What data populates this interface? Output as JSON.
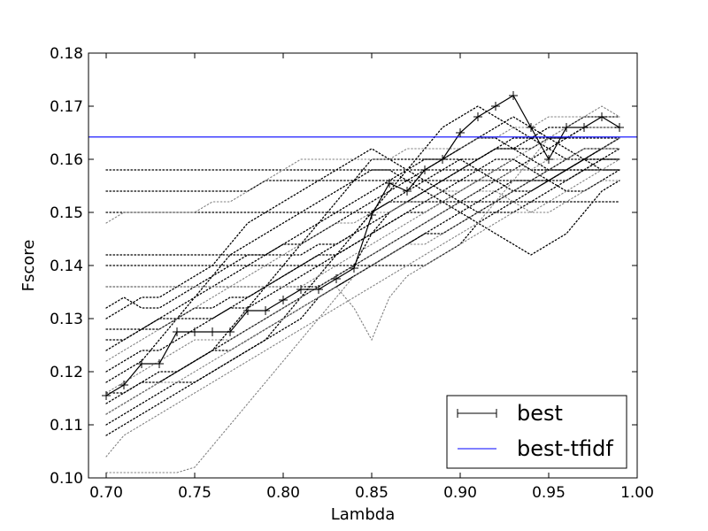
{
  "chart_data": {
    "type": "line",
    "title": "",
    "xlabel": "Lambda",
    "ylabel": "Fscore",
    "xlim": [
      0.69,
      1.0
    ],
    "ylim": [
      0.1,
      0.18
    ],
    "grid": false,
    "legend_position": "lower-right",
    "x_ticks": [
      "0.70",
      "0.75",
      "0.80",
      "0.85",
      "0.90",
      "0.95",
      "1.00"
    ],
    "y_ticks": [
      "0.10",
      "0.11",
      "0.12",
      "0.13",
      "0.14",
      "0.15",
      "0.16",
      "0.17",
      "0.18"
    ],
    "x": [
      0.7,
      0.71,
      0.72,
      0.73,
      0.74,
      0.75,
      0.76,
      0.77,
      0.78,
      0.79,
      0.8,
      0.81,
      0.82,
      0.83,
      0.84,
      0.85,
      0.86,
      0.87,
      0.88,
      0.89,
      0.9,
      0.91,
      0.92,
      0.93,
      0.94,
      0.95,
      0.96,
      0.97,
      0.98,
      0.99
    ],
    "series": [
      {
        "name": "best",
        "color": "#000000",
        "marker": "plus",
        "values": [
          0.1155,
          0.1175,
          0.1215,
          0.1215,
          0.1275,
          0.1275,
          0.1275,
          0.1275,
          0.1315,
          0.1315,
          0.1335,
          0.1355,
          0.1355,
          0.1375,
          0.1395,
          0.1495,
          0.1555,
          0.154,
          0.158,
          0.16,
          0.165,
          0.168,
          0.17,
          0.172,
          0.166,
          0.16,
          0.166,
          0.166,
          0.168,
          0.166
        ]
      },
      {
        "name": "best-tfidf",
        "color": "#0000ff",
        "constant": 0.1642
      }
    ],
    "background_series": [
      {
        "color": "#000000",
        "values": [
          0.158,
          0.158,
          0.158,
          0.158,
          0.158,
          0.158,
          0.158,
          0.158,
          0.158,
          0.158,
          0.158,
          0.158,
          0.158,
          0.158,
          0.158,
          0.158,
          0.158,
          0.158,
          0.158,
          0.158,
          0.158,
          0.158,
          0.158,
          0.158,
          0.158,
          0.158,
          0.158,
          0.158,
          0.158,
          0.158
        ]
      },
      {
        "color": "#000000",
        "values": [
          0.154,
          0.154,
          0.154,
          0.154,
          0.154,
          0.154,
          0.154,
          0.154,
          0.154,
          0.156,
          0.156,
          0.156,
          0.156,
          0.156,
          0.156,
          0.156,
          0.156,
          0.156,
          0.156,
          0.156,
          0.156,
          0.156,
          0.156,
          0.156,
          0.156,
          0.156,
          0.156,
          0.158,
          0.158,
          0.158
        ]
      },
      {
        "color": "#000000",
        "values": [
          0.15,
          0.15,
          0.15,
          0.15,
          0.15,
          0.15,
          0.15,
          0.15,
          0.15,
          0.15,
          0.15,
          0.15,
          0.15,
          0.15,
          0.15,
          0.15,
          0.152,
          0.152,
          0.152,
          0.152,
          0.152,
          0.152,
          0.152,
          0.152,
          0.152,
          0.152,
          0.152,
          0.152,
          0.152,
          0.152
        ]
      },
      {
        "color": "#000000",
        "values": [
          0.142,
          0.142,
          0.142,
          0.142,
          0.142,
          0.142,
          0.142,
          0.142,
          0.142,
          0.142,
          0.142,
          0.142,
          0.144,
          0.144,
          0.146,
          0.15,
          0.152,
          0.154,
          0.156,
          0.158,
          0.16,
          0.16,
          0.162,
          0.162,
          0.162,
          0.164,
          0.164,
          0.164,
          0.164,
          0.164
        ]
      },
      {
        "color": "#000000",
        "values": [
          0.14,
          0.14,
          0.14,
          0.14,
          0.14,
          0.14,
          0.14,
          0.14,
          0.14,
          0.14,
          0.14,
          0.14,
          0.14,
          0.14,
          0.14,
          0.14,
          0.14,
          0.14,
          0.14,
          0.142,
          0.144,
          0.148,
          0.15,
          0.152,
          0.154,
          0.156,
          0.158,
          0.16,
          0.16,
          0.16
        ]
      },
      {
        "color": "#000000",
        "values": [
          0.136,
          0.136,
          0.136,
          0.136,
          0.136,
          0.136,
          0.136,
          0.136,
          0.136,
          0.136,
          0.136,
          0.136,
          0.136,
          0.138,
          0.14,
          0.146,
          0.15,
          0.152,
          0.154,
          0.156,
          0.158,
          0.16,
          0.162,
          0.162,
          0.164,
          0.164,
          0.164,
          0.166,
          0.166,
          0.166
        ]
      },
      {
        "color": "#000000",
        "values": [
          0.132,
          0.134,
          0.132,
          0.132,
          0.134,
          0.136,
          0.138,
          0.14,
          0.142,
          0.142,
          0.144,
          0.144,
          0.146,
          0.148,
          0.15,
          0.152,
          0.154,
          0.156,
          0.158,
          0.16,
          0.162,
          0.164,
          0.164,
          0.162,
          0.16,
          0.158,
          0.158,
          0.16,
          0.162,
          0.164
        ]
      },
      {
        "color": "#000000",
        "values": [
          0.128,
          0.128,
          0.128,
          0.13,
          0.13,
          0.132,
          0.132,
          0.134,
          0.134,
          0.136,
          0.138,
          0.14,
          0.142,
          0.142,
          0.144,
          0.146,
          0.148,
          0.15,
          0.152,
          0.154,
          0.156,
          0.158,
          0.16,
          0.16,
          0.158,
          0.158,
          0.158,
          0.16,
          0.162,
          0.162
        ]
      },
      {
        "color": "#000000",
        "values": [
          0.124,
          0.126,
          0.128,
          0.13,
          0.132,
          0.134,
          0.136,
          0.138,
          0.14,
          0.142,
          0.144,
          0.146,
          0.148,
          0.15,
          0.152,
          0.154,
          0.156,
          0.158,
          0.16,
          0.16,
          0.16,
          0.158,
          0.156,
          0.154,
          0.154,
          0.156,
          0.158,
          0.16,
          0.162,
          0.164
        ]
      },
      {
        "color": "#000000",
        "values": [
          0.12,
          0.122,
          0.124,
          0.124,
          0.126,
          0.128,
          0.13,
          0.132,
          0.134,
          0.136,
          0.138,
          0.14,
          0.142,
          0.144,
          0.146,
          0.148,
          0.15,
          0.152,
          0.154,
          0.156,
          0.158,
          0.16,
          0.162,
          0.164,
          0.164,
          0.166,
          0.166,
          0.168,
          0.168,
          0.168
        ]
      },
      {
        "color": "#000000",
        "values": [
          0.112,
          0.114,
          0.116,
          0.118,
          0.12,
          0.122,
          0.124,
          0.126,
          0.128,
          0.13,
          0.132,
          0.134,
          0.136,
          0.138,
          0.14,
          0.142,
          0.144,
          0.146,
          0.148,
          0.15,
          0.152,
          0.154,
          0.156,
          0.158,
          0.16,
          0.162,
          0.164,
          0.166,
          0.166,
          0.166
        ]
      },
      {
        "color": "#000000",
        "values": [
          0.108,
          0.11,
          0.112,
          0.114,
          0.116,
          0.118,
          0.12,
          0.122,
          0.124,
          0.126,
          0.128,
          0.13,
          0.134,
          0.136,
          0.138,
          0.14,
          0.142,
          0.144,
          0.146,
          0.148,
          0.15,
          0.152,
          0.154,
          0.156,
          0.156,
          0.156,
          0.158,
          0.158,
          0.16,
          0.16
        ]
      },
      {
        "color": "#000000",
        "values": [
          0.116,
          0.116,
          0.118,
          0.118,
          0.12,
          0.122,
          0.124,
          0.128,
          0.132,
          0.136,
          0.14,
          0.144,
          0.148,
          0.152,
          0.156,
          0.16,
          0.16,
          0.16,
          0.16,
          0.16,
          0.162,
          0.164,
          0.166,
          0.168,
          0.166,
          0.164,
          0.162,
          0.16,
          0.16,
          0.16
        ]
      },
      {
        "color": "#000000",
        "values": [
          0.126,
          0.126,
          0.128,
          0.128,
          0.13,
          0.13,
          0.13,
          0.132,
          0.132,
          0.134,
          0.136,
          0.138,
          0.14,
          0.142,
          0.144,
          0.146,
          0.148,
          0.15,
          0.15,
          0.152,
          0.154,
          0.156,
          0.158,
          0.16,
          0.158,
          0.156,
          0.154,
          0.154,
          0.156,
          0.158
        ]
      },
      {
        "color": "#000000",
        "values": [
          0.114,
          0.116,
          0.118,
          0.12,
          0.12,
          0.122,
          0.124,
          0.124,
          0.126,
          0.128,
          0.13,
          0.132,
          0.134,
          0.136,
          0.138,
          0.14,
          0.142,
          0.144,
          0.146,
          0.146,
          0.148,
          0.15,
          0.152,
          0.154,
          0.156,
          0.158,
          0.16,
          0.162,
          0.162,
          0.164
        ]
      },
      {
        "color": "#000000",
        "values": [
          0.11,
          0.112,
          0.114,
          0.116,
          0.118,
          0.118,
          0.12,
          0.122,
          0.124,
          0.126,
          0.13,
          0.134,
          0.138,
          0.142,
          0.146,
          0.15,
          0.154,
          0.158,
          0.162,
          0.166,
          0.168,
          0.17,
          0.168,
          0.166,
          0.164,
          0.162,
          0.16,
          0.16,
          0.158,
          0.158
        ]
      },
      {
        "color": "#000000",
        "values": [
          0.13,
          0.132,
          0.134,
          0.134,
          0.136,
          0.138,
          0.14,
          0.144,
          0.148,
          0.15,
          0.152,
          0.154,
          0.156,
          0.158,
          0.16,
          0.162,
          0.16,
          0.158,
          0.156,
          0.154,
          0.152,
          0.15,
          0.15,
          0.15,
          0.152,
          0.154,
          0.156,
          0.158,
          0.16,
          0.162
        ]
      },
      {
        "color": "#000000",
        "values": [
          0.118,
          0.12,
          0.122,
          0.126,
          0.13,
          0.134,
          0.138,
          0.142,
          0.144,
          0.146,
          0.148,
          0.15,
          0.152,
          0.154,
          0.156,
          0.158,
          0.158,
          0.156,
          0.154,
          0.152,
          0.15,
          0.148,
          0.146,
          0.144,
          0.142,
          0.144,
          0.146,
          0.15,
          0.154,
          0.156
        ]
      },
      {
        "color": "#808080",
        "values": [
          0.101,
          0.101,
          0.101,
          0.101,
          0.101,
          0.102,
          0.106,
          0.11,
          0.114,
          0.118,
          0.122,
          0.126,
          0.13,
          0.134,
          0.138,
          0.14,
          0.142,
          0.144,
          0.144,
          0.146,
          0.148,
          0.15,
          0.152,
          0.154,
          0.156,
          0.158,
          0.16,
          0.162,
          0.162,
          0.162
        ]
      },
      {
        "color": "#808080",
        "values": [
          0.104,
          0.108,
          0.11,
          0.112,
          0.114,
          0.116,
          0.118,
          0.12,
          0.122,
          0.124,
          0.126,
          0.128,
          0.13,
          0.132,
          0.134,
          0.136,
          0.138,
          0.14,
          0.142,
          0.144,
          0.146,
          0.148,
          0.152,
          0.156,
          0.16,
          0.164,
          0.166,
          0.168,
          0.17,
          0.168
        ]
      },
      {
        "color": "#808080",
        "values": [
          0.112,
          0.114,
          0.116,
          0.118,
          0.118,
          0.12,
          0.122,
          0.124,
          0.126,
          0.128,
          0.13,
          0.132,
          0.134,
          0.136,
          0.132,
          0.126,
          0.134,
          0.138,
          0.14,
          0.142,
          0.144,
          0.146,
          0.148,
          0.15,
          0.15,
          0.152,
          0.154,
          0.156,
          0.158,
          0.16
        ]
      },
      {
        "color": "#808080",
        "values": [
          0.136,
          0.136,
          0.136,
          0.136,
          0.136,
          0.136,
          0.136,
          0.136,
          0.136,
          0.136,
          0.136,
          0.136,
          0.138,
          0.14,
          0.142,
          0.144,
          0.146,
          0.148,
          0.15,
          0.152,
          0.154,
          0.156,
          0.158,
          0.16,
          0.162,
          0.164,
          0.166,
          0.166,
          0.166,
          0.166
        ]
      },
      {
        "color": "#808080",
        "values": [
          0.148,
          0.15,
          0.15,
          0.15,
          0.15,
          0.15,
          0.152,
          0.152,
          0.154,
          0.156,
          0.158,
          0.16,
          0.16,
          0.16,
          0.16,
          0.16,
          0.16,
          0.162,
          0.162,
          0.162,
          0.162,
          0.164,
          0.164,
          0.166,
          0.166,
          0.168,
          0.168,
          0.168,
          0.168,
          0.168
        ]
      },
      {
        "color": "#808080",
        "values": [
          0.122,
          0.124,
          0.126,
          0.128,
          0.13,
          0.132,
          0.134,
          0.136,
          0.138,
          0.14,
          0.142,
          0.144,
          0.146,
          0.148,
          0.148,
          0.15,
          0.15,
          0.152,
          0.152,
          0.154,
          0.154,
          0.156,
          0.156,
          0.158,
          0.158,
          0.16,
          0.16,
          0.162,
          0.162,
          0.164
        ]
      },
      {
        "color": "#808080",
        "values": [
          0.116,
          0.118,
          0.12,
          0.122,
          0.124,
          0.126,
          0.126,
          0.126,
          0.128,
          0.13,
          0.132,
          0.134,
          0.136,
          0.138,
          0.14,
          0.142,
          0.144,
          0.146,
          0.148,
          0.15,
          0.152,
          0.154,
          0.154,
          0.152,
          0.15,
          0.15,
          0.152,
          0.154,
          0.156,
          0.156
        ]
      }
    ]
  }
}
